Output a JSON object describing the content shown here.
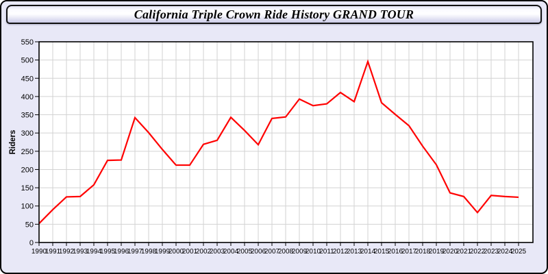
{
  "page": {
    "title": "California Triple Crown Ride History GRAND TOUR"
  },
  "colors": {
    "background": "#e8e8f7",
    "plot_background": "#ffffff",
    "grid": "#d2d2d2",
    "frame": "#000000",
    "line": "#ff0000",
    "text": "#000000"
  },
  "chart_data": {
    "type": "line",
    "title": "California Triple Crown Ride History GRAND TOUR",
    "xlabel": "",
    "ylabel": "Riders",
    "legend_position": "none",
    "grid": true,
    "ylim": [
      0,
      550
    ],
    "ytick_step": 50,
    "yticks": [
      0,
      50,
      100,
      150,
      200,
      250,
      300,
      350,
      400,
      450,
      500,
      550
    ],
    "categories": [
      1990,
      1991,
      1992,
      1993,
      1994,
      1995,
      1996,
      1997,
      1998,
      1999,
      2000,
      2001,
      2002,
      2003,
      2004,
      2005,
      2006,
      2007,
      2008,
      2009,
      2010,
      2011,
      2012,
      2013,
      2014,
      2015,
      2016,
      2017,
      2018,
      2019,
      2020,
      2021,
      2022,
      2023,
      2024,
      2025
    ],
    "series": [
      {
        "name": "Riders",
        "color": "#ff0000",
        "values": [
          52,
          90,
          125,
          126,
          158,
          225,
          226,
          342,
          301,
          255,
          212,
          212,
          269,
          280,
          343,
          307,
          268,
          340,
          344,
          393,
          375,
          380,
          411,
          386,
          496,
          383,
          351,
          320,
          264,
          213,
          136,
          126,
          82,
          129,
          126,
          124
        ]
      }
    ]
  }
}
